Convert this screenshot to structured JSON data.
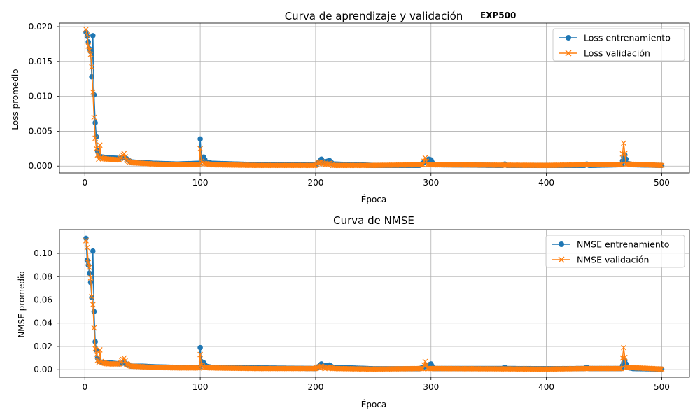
{
  "colors": {
    "train": "#1f77b4",
    "val": "#ff7f0e",
    "grid": "#b0b0b0"
  },
  "chart_data": [
    {
      "type": "line",
      "title": "Curva de aprendizaje y validación",
      "tag": "EXP500",
      "xlabel": "Época",
      "ylabel": "Loss promedio",
      "xlim": [
        -22,
        524
      ],
      "ylim": [
        -0.00098,
        0.0205
      ],
      "xticks": [
        0,
        100,
        200,
        300,
        400,
        500
      ],
      "yticks": [
        0.0,
        0.005,
        0.01,
        0.015,
        0.02
      ],
      "ytick_labels": [
        "0.000",
        "0.005",
        "0.010",
        "0.015",
        "0.020"
      ],
      "grid": true,
      "legend_position": "top-right",
      "series": [
        {
          "name": "Loss entrenamiento",
          "marker": "circle",
          "keypoints": [
            [
              1,
              0.0192
            ],
            [
              2,
              0.0186
            ],
            [
              3,
              0.0178
            ],
            [
              4,
              0.0168
            ],
            [
              5,
              0.0164
            ],
            [
              6,
              0.0128
            ],
            [
              7,
              0.0187
            ],
            [
              8,
              0.0102
            ],
            [
              9,
              0.0062
            ],
            [
              10,
              0.0042
            ],
            [
              11,
              0.0022
            ],
            [
              12,
              0.0016
            ],
            [
              13,
              0.0014
            ],
            [
              15,
              0.0013
            ],
            [
              20,
              0.0012
            ],
            [
              30,
              0.0011
            ],
            [
              34,
              0.0013
            ],
            [
              40,
              0.0006
            ],
            [
              50,
              0.0005
            ],
            [
              60,
              0.0004
            ],
            [
              80,
              0.0003
            ],
            [
              99,
              0.0004
            ],
            [
              100,
              0.0039
            ],
            [
              101,
              0.0012
            ],
            [
              102,
              0.0008
            ],
            [
              103,
              0.0013
            ],
            [
              105,
              0.0006
            ],
            [
              110,
              0.0004
            ],
            [
              150,
              0.0002
            ],
            [
              200,
              0.0002
            ],
            [
              203,
              0.0006
            ],
            [
              205,
              0.001
            ],
            [
              207,
              0.0005
            ],
            [
              212,
              0.0008
            ],
            [
              215,
              0.0003
            ],
            [
              250,
              0.0001
            ],
            [
              290,
              0.0001
            ],
            [
              298,
              0.001
            ],
            [
              300,
              0.0009
            ],
            [
              302,
              0.0002
            ],
            [
              362,
              0.0001
            ],
            [
              364,
              0.0003
            ],
            [
              366,
              0.0001
            ],
            [
              400,
              0.0001
            ],
            [
              433,
              0.0001
            ],
            [
              435,
              0.0003
            ],
            [
              437,
              0.0001
            ],
            [
              465,
              0.0002
            ],
            [
              467,
              0.0013
            ],
            [
              468,
              0.0016
            ],
            [
              470,
              0.0004
            ],
            [
              475,
              0.0002
            ],
            [
              500,
              0.0001
            ]
          ]
        },
        {
          "name": "Loss validación",
          "marker": "x",
          "keypoints": [
            [
              1,
              0.0196
            ],
            [
              2,
              0.0188
            ],
            [
              3,
              0.0172
            ],
            [
              4,
              0.0166
            ],
            [
              5,
              0.016
            ],
            [
              6,
              0.0142
            ],
            [
              7,
              0.0106
            ],
            [
              8,
              0.007
            ],
            [
              9,
              0.004
            ],
            [
              10,
              0.0025
            ],
            [
              11,
              0.0016
            ],
            [
              12,
              0.001
            ],
            [
              13,
              0.003
            ],
            [
              14,
              0.0012
            ],
            [
              15,
              0.0011
            ],
            [
              20,
              0.001
            ],
            [
              30,
              0.0009
            ],
            [
              34,
              0.0018
            ],
            [
              36,
              0.0009
            ],
            [
              40,
              0.0005
            ],
            [
              50,
              0.0004
            ],
            [
              60,
              0.0003
            ],
            [
              80,
              0.0002
            ],
            [
              99,
              0.0002
            ],
            [
              100,
              0.0025
            ],
            [
              101,
              0.0007
            ],
            [
              103,
              0.0004
            ],
            [
              110,
              0.0002
            ],
            [
              150,
              0.0001
            ],
            [
              200,
              0.0001
            ],
            [
              202,
              0.0004
            ],
            [
              205,
              0.0006
            ],
            [
              208,
              0.0002
            ],
            [
              212,
              0.0004
            ],
            [
              215,
              0.0001
            ],
            [
              250,
              0.0001
            ],
            [
              293,
              0.0002
            ],
            [
              295,
              0.0012
            ],
            [
              297,
              0.0002
            ],
            [
              300,
              0.0002
            ],
            [
              400,
              0.0001
            ],
            [
              435,
              0.0002
            ],
            [
              465,
              0.0002
            ],
            [
              467,
              0.0033
            ],
            [
              469,
              0.0003
            ],
            [
              500,
              0.0001
            ]
          ]
        }
      ]
    },
    {
      "type": "line",
      "title": "Curva de NMSE",
      "xlabel": "Época",
      "ylabel": "NMSE promedio",
      "xlim": [
        -22,
        524
      ],
      "ylim": [
        -0.0065,
        0.1205
      ],
      "xticks": [
        0,
        100,
        200,
        300,
        400,
        500
      ],
      "yticks": [
        0.0,
        0.02,
        0.04,
        0.06,
        0.08,
        0.1
      ],
      "ytick_labels": [
        "0.00",
        "0.02",
        "0.04",
        "0.06",
        "0.08",
        "0.10"
      ],
      "grid": true,
      "legend_position": "top-right",
      "series": [
        {
          "name": "NMSE entrenamiento",
          "marker": "circle",
          "keypoints": [
            [
              1,
              0.113
            ],
            [
              2,
              0.094
            ],
            [
              3,
              0.09
            ],
            [
              4,
              0.083
            ],
            [
              5,
              0.075
            ],
            [
              6,
              0.062
            ],
            [
              7,
              0.102
            ],
            [
              8,
              0.05
            ],
            [
              9,
              0.024
            ],
            [
              10,
              0.017
            ],
            [
              11,
              0.01
            ],
            [
              12,
              0.008
            ],
            [
              13,
              0.007
            ],
            [
              15,
              0.006
            ],
            [
              20,
              0.006
            ],
            [
              30,
              0.005
            ],
            [
              34,
              0.006
            ],
            [
              40,
              0.003
            ],
            [
              50,
              0.003
            ],
            [
              60,
              0.0025
            ],
            [
              80,
              0.002
            ],
            [
              99,
              0.002
            ],
            [
              100,
              0.019
            ],
            [
              101,
              0.007
            ],
            [
              102,
              0.004
            ],
            [
              103,
              0.006
            ],
            [
              105,
              0.003
            ],
            [
              110,
              0.002
            ],
            [
              150,
              0.0015
            ],
            [
              200,
              0.001
            ],
            [
              203,
              0.003
            ],
            [
              205,
              0.005
            ],
            [
              207,
              0.003
            ],
            [
              212,
              0.004
            ],
            [
              215,
              0.002
            ],
            [
              250,
              0.0008
            ],
            [
              290,
              0.0008
            ],
            [
              298,
              0.004
            ],
            [
              300,
              0.005
            ],
            [
              302,
              0.001
            ],
            [
              362,
              0.001
            ],
            [
              364,
              0.002
            ],
            [
              366,
              0.001
            ],
            [
              400,
              0.0008
            ],
            [
              433,
              0.001
            ],
            [
              435,
              0.002
            ],
            [
              437,
              0.001
            ],
            [
              465,
              0.001
            ],
            [
              467,
              0.006
            ],
            [
              468,
              0.008
            ],
            [
              470,
              0.002
            ],
            [
              475,
              0.001
            ],
            [
              500,
              0.0005
            ]
          ]
        },
        {
          "name": "NMSE validación",
          "marker": "x",
          "keypoints": [
            [
              1,
              0.111
            ],
            [
              2,
              0.105
            ],
            [
              3,
              0.092
            ],
            [
              4,
              0.088
            ],
            [
              5,
              0.079
            ],
            [
              6,
              0.063
            ],
            [
              7,
              0.056
            ],
            [
              8,
              0.036
            ],
            [
              9,
              0.018
            ],
            [
              10,
              0.013
            ],
            [
              11,
              0.008
            ],
            [
              12,
              0.006
            ],
            [
              13,
              0.017
            ],
            [
              14,
              0.007
            ],
            [
              15,
              0.006
            ],
            [
              20,
              0.005
            ],
            [
              30,
              0.005
            ],
            [
              34,
              0.01
            ],
            [
              36,
              0.005
            ],
            [
              40,
              0.003
            ],
            [
              50,
              0.0025
            ],
            [
              60,
              0.002
            ],
            [
              80,
              0.0015
            ],
            [
              99,
              0.0015
            ],
            [
              100,
              0.013
            ],
            [
              101,
              0.004
            ],
            [
              103,
              0.002
            ],
            [
              110,
              0.0015
            ],
            [
              150,
              0.001
            ],
            [
              200,
              0.001
            ],
            [
              202,
              0.002
            ],
            [
              205,
              0.003
            ],
            [
              208,
              0.001
            ],
            [
              212,
              0.002
            ],
            [
              215,
              0.001
            ],
            [
              250,
              0.0005
            ],
            [
              293,
              0.001
            ],
            [
              295,
              0.007
            ],
            [
              297,
              0.001
            ],
            [
              300,
              0.001
            ],
            [
              400,
              0.0005
            ],
            [
              435,
              0.001
            ],
            [
              465,
              0.001
            ],
            [
              467,
              0.019
            ],
            [
              469,
              0.002
            ],
            [
              500,
              0.0005
            ]
          ]
        }
      ]
    }
  ]
}
